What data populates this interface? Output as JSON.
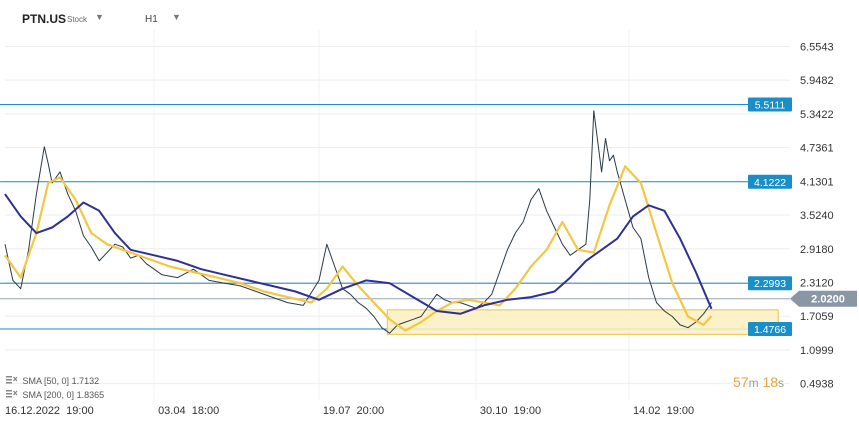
{
  "header": {
    "symbol": "PTN.US",
    "instrument_type": "Stock",
    "timeframe": "H1"
  },
  "legend": [
    {
      "label": "SMA [50, 0]",
      "value": "1.7132",
      "color": "#f2c744"
    },
    {
      "label": "SMA [200, 0]",
      "value": "1.8365",
      "color": "#2e3192"
    }
  ],
  "countdown": {
    "minutes": "57",
    "seconds": "18",
    "min_unit": "m",
    "sec_unit": "s"
  },
  "colors": {
    "price_line": "#2b3a45",
    "sma_fast": "#f2c744",
    "sma_slow": "#2e3192",
    "level_line": "#1a8fc7",
    "zone_fill": "#fbf0bf",
    "zone_border": "#e8c24c",
    "current_price_bg": "#8a96a3"
  },
  "chart_data": {
    "type": "line",
    "title": "",
    "xlabel": "",
    "ylabel": "",
    "ylim": [
      0.2,
      6.85
    ],
    "x_tick_labels": [
      "16.12.2022  19:00",
      "03.04  18:00",
      "19.07  20:00",
      "30.10  19:00",
      "14.02  19:00"
    ],
    "y_tick_labels": [
      "6.5543",
      "5.9482",
      "5.3422",
      "4.7361",
      "4.1301",
      "3.5240",
      "2.9180",
      "2.3120",
      "1.7059",
      "1.0999",
      "0.4938"
    ],
    "horizontal_levels": [
      {
        "label": "5.5111",
        "value": 5.5111
      },
      {
        "label": "4.1222",
        "value": 4.1222
      },
      {
        "label": "2.2993",
        "value": 2.2993
      },
      {
        "label": "1.4766",
        "value": 1.4766
      }
    ],
    "current_price": {
      "label": "2.0200",
      "value": 2.02
    },
    "support_zone": {
      "from": 1.38,
      "to": 1.82,
      "x_start": 0.487,
      "x_end": 0.985
    },
    "grid": true,
    "series": [
      {
        "x": [
          0.0,
          0.01,
          0.02,
          0.03,
          0.04,
          0.05,
          0.055,
          0.06,
          0.07,
          0.08,
          0.09,
          0.1,
          0.11,
          0.12,
          0.13,
          0.14,
          0.15,
          0.16,
          0.17,
          0.18,
          0.19,
          0.2,
          0.22,
          0.24,
          0.26,
          0.28,
          0.3,
          0.32,
          0.34,
          0.36,
          0.38,
          0.4,
          0.41,
          0.42,
          0.43,
          0.44,
          0.45,
          0.46,
          0.47,
          0.48,
          0.49,
          0.5,
          0.51,
          0.52,
          0.53,
          0.54,
          0.55,
          0.56,
          0.57,
          0.58,
          0.59,
          0.6,
          0.61,
          0.62,
          0.63,
          0.64,
          0.65,
          0.66,
          0.67,
          0.68,
          0.69,
          0.7,
          0.71,
          0.72,
          0.73,
          0.74,
          0.745,
          0.75,
          0.76,
          0.765,
          0.77,
          0.775,
          0.78,
          0.79,
          0.8,
          0.81,
          0.82,
          0.83,
          0.84,
          0.85,
          0.86,
          0.87,
          0.88,
          0.89,
          0.9
        ],
        "values": [
          3.0,
          2.35,
          2.2,
          2.9,
          3.9,
          4.75,
          4.45,
          4.1,
          4.3,
          3.9,
          3.6,
          3.15,
          2.95,
          2.7,
          2.85,
          3.0,
          2.95,
          2.75,
          2.8,
          2.65,
          2.55,
          2.45,
          2.4,
          2.55,
          2.35,
          2.3,
          2.25,
          2.15,
          2.05,
          1.95,
          1.9,
          2.35,
          3.0,
          2.6,
          2.2,
          2.1,
          1.95,
          1.85,
          1.7,
          1.5,
          1.4,
          1.55,
          1.6,
          1.65,
          1.7,
          1.9,
          2.1,
          2.0,
          1.95,
          1.95,
          1.9,
          1.85,
          1.95,
          2.1,
          2.5,
          2.9,
          3.2,
          3.4,
          3.8,
          4.0,
          3.6,
          3.3,
          3.0,
          2.8,
          2.9,
          3.0,
          3.8,
          5.4,
          4.3,
          4.9,
          4.5,
          4.6,
          4.3,
          3.8,
          3.3,
          3.1,
          2.4,
          1.95,
          1.8,
          1.7,
          1.55,
          1.5,
          1.6,
          1.75,
          1.95
        ]
      },
      {
        "name": "SMA [50, 0]",
        "x": [
          0.0,
          0.02,
          0.04,
          0.055,
          0.07,
          0.09,
          0.11,
          0.13,
          0.15,
          0.18,
          0.21,
          0.24,
          0.27,
          0.3,
          0.33,
          0.36,
          0.39,
          0.41,
          0.43,
          0.45,
          0.47,
          0.49,
          0.51,
          0.53,
          0.55,
          0.57,
          0.59,
          0.61,
          0.63,
          0.65,
          0.67,
          0.69,
          0.71,
          0.73,
          0.75,
          0.77,
          0.79,
          0.81,
          0.83,
          0.85,
          0.87,
          0.89,
          0.9
        ],
        "values": [
          2.8,
          2.4,
          3.2,
          4.1,
          4.2,
          3.8,
          3.2,
          3.0,
          2.9,
          2.75,
          2.6,
          2.5,
          2.4,
          2.3,
          2.15,
          2.05,
          1.95,
          2.2,
          2.6,
          2.25,
          1.95,
          1.65,
          1.45,
          1.6,
          1.8,
          1.95,
          2.0,
          1.95,
          1.9,
          2.2,
          2.6,
          2.9,
          3.4,
          2.9,
          2.85,
          3.7,
          4.4,
          4.1,
          3.2,
          2.3,
          1.7,
          1.55,
          1.71
        ]
      },
      {
        "name": "SMA [200, 0]",
        "x": [
          0.0,
          0.02,
          0.04,
          0.06,
          0.08,
          0.1,
          0.12,
          0.14,
          0.16,
          0.19,
          0.22,
          0.25,
          0.28,
          0.31,
          0.34,
          0.37,
          0.4,
          0.43,
          0.46,
          0.49,
          0.52,
          0.55,
          0.58,
          0.61,
          0.64,
          0.67,
          0.7,
          0.72,
          0.74,
          0.76,
          0.78,
          0.8,
          0.82,
          0.84,
          0.86,
          0.88,
          0.9
        ],
        "values": [
          3.9,
          3.5,
          3.2,
          3.3,
          3.5,
          3.75,
          3.6,
          3.2,
          2.9,
          2.8,
          2.7,
          2.55,
          2.45,
          2.35,
          2.25,
          2.15,
          2.0,
          2.2,
          2.35,
          2.3,
          2.05,
          1.8,
          1.75,
          1.9,
          2.0,
          2.05,
          2.15,
          2.4,
          2.7,
          2.9,
          3.1,
          3.5,
          3.7,
          3.6,
          3.1,
          2.5,
          1.84
        ]
      }
    ]
  }
}
